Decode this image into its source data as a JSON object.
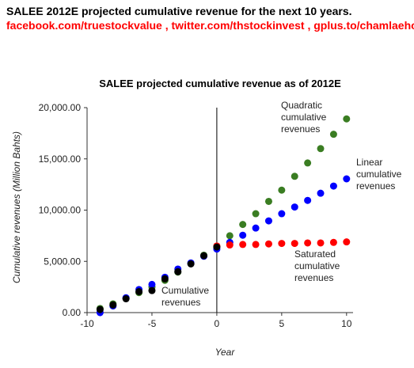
{
  "header": {
    "title": "SALEE 2012E projected cumulative revenue for the next 10 years.",
    "links": "facebook.com/truestockvalue , twitter.com/thstockinvest , gplus.to/chamlaehoon"
  },
  "colors": {
    "header_links": "#ff0000",
    "historical": "#000000",
    "quadratic": "#3a7d22",
    "linear": "#0000ff",
    "saturated": "#ff0000"
  },
  "chart_data": {
    "type": "scatter",
    "title": "SALEE projected cumulative revenue as of 2012E",
    "xlabel": "Year",
    "ylabel": "Cumulative revenues (Million Bahts)",
    "xlim": [
      -10,
      10.5
    ],
    "ylim": [
      0,
      20000
    ],
    "x_ticks": [
      -10,
      -5,
      0,
      5,
      10
    ],
    "y_ticks": [
      0,
      5000,
      10000,
      15000,
      20000
    ],
    "x_tick_labels": [
      "-10",
      "-5",
      "0",
      "5",
      "10"
    ],
    "y_tick_labels": [
      "0.00",
      "5,000.00",
      "10,000.00",
      "15,000.00",
      "20,000.00"
    ],
    "grid": false,
    "vertical_reference_line_x": 0,
    "series": [
      {
        "key": "historical",
        "name": "Cumulative revenues",
        "color": "#000000",
        "x": [
          -9,
          -8,
          -7,
          -6,
          -5,
          -4,
          -3,
          -2,
          -1,
          0
        ],
        "y": [
          300,
          750,
          1350,
          2050,
          2150,
          3300,
          4000,
          4750,
          5550,
          6400
        ]
      },
      {
        "key": "quadratic",
        "name": "Quadratic cumulative revenues",
        "color": "#3a7d22",
        "x": [
          -9,
          -8,
          -7,
          -6,
          -5,
          -4,
          -3,
          -2,
          -1,
          0,
          1,
          2,
          3,
          4,
          5,
          6,
          7,
          8,
          9,
          10
        ],
        "y": [
          400,
          850,
          1400,
          1950,
          2500,
          3150,
          3950,
          4800,
          5600,
          6450,
          7500,
          8600,
          9650,
          10850,
          11950,
          13300,
          14600,
          16000,
          17400,
          18900
        ]
      },
      {
        "key": "linear",
        "name": "Linear cumulative revenues",
        "color": "#0000ff",
        "x": [
          -9,
          -8,
          -7,
          -6,
          -5,
          -4,
          -3,
          -2,
          -1,
          0,
          1,
          2,
          3,
          4,
          5,
          6,
          7,
          8,
          9,
          10
        ],
        "y": [
          0,
          650,
          1450,
          2250,
          2750,
          3450,
          4250,
          4850,
          5500,
          6200,
          6850,
          7550,
          8250,
          8950,
          9650,
          10300,
          10950,
          11650,
          12350,
          13050
        ]
      },
      {
        "key": "saturated",
        "name": "Saturated cumulative revenues",
        "color": "#ff0000",
        "x": [
          0,
          1,
          2,
          3,
          4,
          5,
          6,
          7,
          8,
          9,
          10
        ],
        "y": [
          6500,
          6600,
          6650,
          6650,
          6700,
          6750,
          6750,
          6800,
          6800,
          6850,
          6900
        ]
      }
    ],
    "annotations": [
      {
        "key": "quadratic",
        "lines": [
          "Quadratic",
          "cumulative",
          "revenues"
        ]
      },
      {
        "key": "linear",
        "lines": [
          "Linear",
          "cumulative",
          "revenues"
        ]
      },
      {
        "key": "saturated",
        "lines": [
          "Saturated",
          "cumulative",
          "revenues"
        ]
      },
      {
        "key": "historical",
        "lines": [
          "Cumulative",
          "revenues"
        ]
      }
    ]
  }
}
